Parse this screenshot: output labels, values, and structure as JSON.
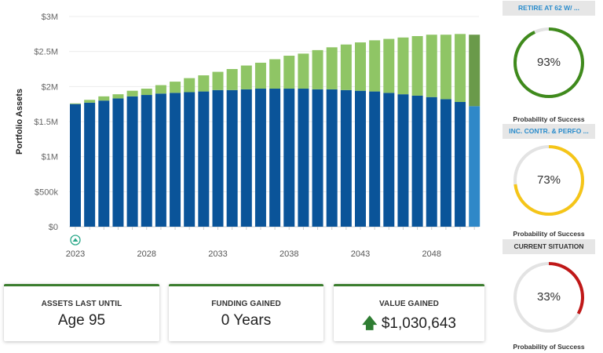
{
  "chart_data": {
    "type": "bar",
    "stacked": true,
    "ylabel": "Portfolio Assets",
    "xlabel": "",
    "ylim": [
      0,
      3000000
    ],
    "yticks": [
      "$0",
      "$500k",
      "$1M",
      "$1.5M",
      "$2M",
      "$2.5M",
      "$3M"
    ],
    "ytick_values": [
      0,
      500000,
      1000000,
      1500000,
      2000000,
      2500000,
      3000000
    ],
    "xticks": [
      "2023",
      "2028",
      "2033",
      "2038",
      "2043",
      "2048"
    ],
    "x": [
      2023,
      2024,
      2025,
      2026,
      2027,
      2028,
      2029,
      2030,
      2031,
      2032,
      2033,
      2034,
      2035,
      2036,
      2037,
      2038,
      2039,
      2040,
      2041,
      2042,
      2043,
      2044,
      2045,
      2046,
      2047,
      2048,
      2049,
      2050,
      2051
    ],
    "series": [
      {
        "color": "#0a5499",
        "highlight_color": "#2f88c8",
        "values": [
          1750000,
          1770000,
          1800000,
          1830000,
          1860000,
          1880000,
          1900000,
          1910000,
          1920000,
          1930000,
          1950000,
          1950000,
          1960000,
          1970000,
          1970000,
          1970000,
          1970000,
          1960000,
          1960000,
          1950000,
          1940000,
          1930000,
          1910000,
          1890000,
          1870000,
          1850000,
          1820000,
          1780000,
          1720000
        ]
      },
      {
        "color": "#8fc565",
        "highlight_color": "#6a9a4a",
        "values": [
          10000,
          40000,
          60000,
          60000,
          80000,
          90000,
          120000,
          160000,
          200000,
          230000,
          260000,
          300000,
          340000,
          370000,
          420000,
          470000,
          500000,
          560000,
          600000,
          650000,
          690000,
          730000,
          770000,
          810000,
          850000,
          890000,
          920000,
          970000,
          1020000
        ]
      }
    ],
    "highlighted_x": 2051,
    "grid": true,
    "marker_icon": "retirement-icon"
  },
  "cards": [
    {
      "label": "ASSETS LAST UNTIL",
      "value": "Age 95"
    },
    {
      "label": "FUNDING GAINED",
      "value": "0 Years"
    },
    {
      "label": "VALUE GAINED",
      "value": "$1,030,643",
      "icon": "arrow-up-icon",
      "arrow": "🡅"
    }
  ],
  "scenarios": [
    {
      "title": "RETIRE AT 62 W/ ...",
      "title_color": "#2a8ccc",
      "percent": 93,
      "percent_label": "93%",
      "color": "#3f8a1c",
      "caption": "Probability of Success"
    },
    {
      "title": "INC. CONTR. & PERFO ...",
      "title_color": "#2a8ccc",
      "percent": 73,
      "percent_label": "73%",
      "color": "#f5c518",
      "caption": "Probability of Success"
    },
    {
      "title": "CURRENT SITUATION",
      "title_color": "#333333",
      "percent": 33,
      "percent_label": "33%",
      "color": "#c01818",
      "caption": "Probability of Success"
    }
  ]
}
